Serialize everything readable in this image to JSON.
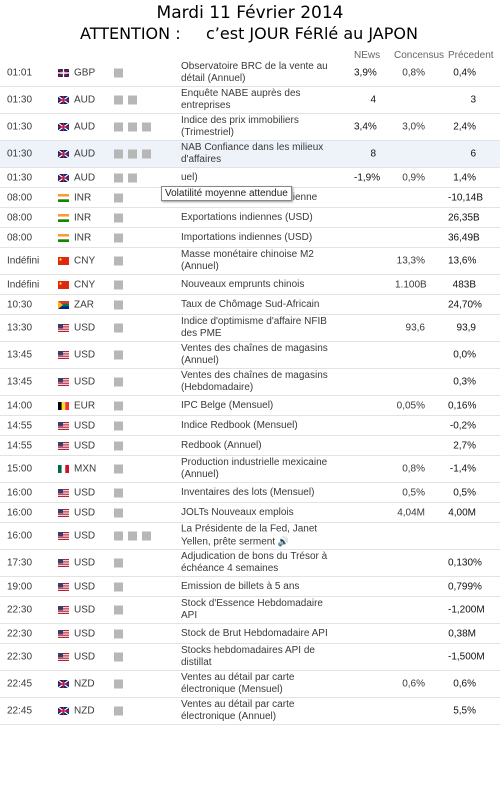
{
  "header": {
    "date": "Mardi 11 Février 2014",
    "attention": "ATTENTION :     c’est JOUR FéRlé au JAPON"
  },
  "columns": {
    "news": "NEws",
    "consensus": "Concensus",
    "previous": "Précedent"
  },
  "tooltip": "Volatilité moyenne attendue",
  "speaker_icon": "speaker-icon",
  "flag_colors": {
    "GBP": [
      "#012169",
      "#C8102E",
      "#ffffff"
    ],
    "AUD": [
      "#00247D",
      "#ffffff",
      "#CC142B"
    ],
    "INR": [
      "#FF9933",
      "#ffffff",
      "#138808"
    ],
    "CNY": [
      "#DE2910",
      "#DE2910",
      "#FFDE00"
    ],
    "ZAR": [
      "#007A4D",
      "#FFB612",
      "#DE3831"
    ],
    "USD": [
      "#B22234",
      "#ffffff",
      "#3C3B6E"
    ],
    "EUR": [
      "#000000",
      "#FDDA24",
      "#EF3340"
    ],
    "MXN": [
      "#006847",
      "#ffffff",
      "#CE1126"
    ],
    "NZD": [
      "#00247D",
      "#ffffff",
      "#CC142B"
    ]
  },
  "rows": [
    {
      "time": "01:01",
      "currency": "GBP",
      "importance": 1,
      "event": "Observatoire BRC de la vente au détail (Annuel)",
      "news": "3,9%",
      "consensus": "0,8%",
      "previous": "0,4%"
    },
    {
      "time": "01:30",
      "currency": "AUD",
      "importance": 2,
      "event": "Enquête NABE auprès des entreprises",
      "news": "4",
      "consensus": "",
      "previous": "3"
    },
    {
      "time": "01:30",
      "currency": "AUD",
      "importance": 3,
      "event": "Indice des prix immobiliers (Trimestriel)",
      "news": "3,4%",
      "consensus": "3,0%",
      "previous": "2,4%"
    },
    {
      "time": "01:30",
      "currency": "AUD",
      "importance": 3,
      "event": "NAB Confiance dans les milieux d'affaires",
      "news": "8",
      "consensus": "",
      "previous": "6"
    },
    {
      "time": "01:30",
      "currency": "AUD",
      "importance": 2,
      "event": "uel)",
      "news": "-1,9%",
      "consensus": "0,9%",
      "previous": "1,4%"
    },
    {
      "time": "08:00",
      "currency": "INR",
      "importance": 1,
      "event": "Balance commerciale indienne",
      "news": "",
      "consensus": "",
      "previous": "-10,14B"
    },
    {
      "time": "08:00",
      "currency": "INR",
      "importance": 1,
      "event": "Exportations indiennes (USD)",
      "news": "",
      "consensus": "",
      "previous": "26,35B"
    },
    {
      "time": "08:00",
      "currency": "INR",
      "importance": 1,
      "event": "Importations indiennes (USD)",
      "news": "",
      "consensus": "",
      "previous": "36,49B"
    },
    {
      "time": "Indéfini",
      "currency": "CNY",
      "importance": 1,
      "event": "Masse monétaire chinoise M2 (Annuel)",
      "news": "",
      "consensus": "13,3%",
      "previous": "13,6%"
    },
    {
      "time": "Indéfini",
      "currency": "CNY",
      "importance": 1,
      "event": "Nouveaux emprunts chinois",
      "news": "",
      "consensus": "1.100B",
      "previous": "483B"
    },
    {
      "time": "10:30",
      "currency": "ZAR",
      "importance": 1,
      "event": "Taux de Chômage Sud-Africain",
      "news": "",
      "consensus": "",
      "previous": "24,70%"
    },
    {
      "time": "13:30",
      "currency": "USD",
      "importance": 1,
      "event": "Indice d'optimisme d'affaire NFIB des PME",
      "news": "",
      "consensus": "93,6",
      "previous": "93,9"
    },
    {
      "time": "13:45",
      "currency": "USD",
      "importance": 1,
      "event": "Ventes des chaînes de magasins (Annuel)",
      "news": "",
      "consensus": "",
      "previous": "0,0%"
    },
    {
      "time": "13:45",
      "currency": "USD",
      "importance": 1,
      "event": "Ventes des chaînes de magasins (Hebdomadaire)",
      "news": "",
      "consensus": "",
      "previous": "0,3%"
    },
    {
      "time": "14:00",
      "currency": "EUR",
      "importance": 1,
      "event": "IPC Belge (Mensuel)",
      "news": "",
      "consensus": "0,05%",
      "previous": "0,16%"
    },
    {
      "time": "14:55",
      "currency": "USD",
      "importance": 1,
      "event": "Indice Redbook (Mensuel)",
      "news": "",
      "consensus": "",
      "previous": "-0,2%"
    },
    {
      "time": "14:55",
      "currency": "USD",
      "importance": 1,
      "event": "Redbook (Annuel)",
      "news": "",
      "consensus": "",
      "previous": "2,7%"
    },
    {
      "time": "15:00",
      "currency": "MXN",
      "importance": 1,
      "event": "Production industrielle mexicaine (Annuel)",
      "news": "",
      "consensus": "0,8%",
      "previous": "-1,4%"
    },
    {
      "time": "16:00",
      "currency": "USD",
      "importance": 1,
      "event": "Inventaires des lots (Mensuel)",
      "news": "",
      "consensus": "0,5%",
      "previous": "0,5%"
    },
    {
      "time": "16:00",
      "currency": "USD",
      "importance": 1,
      "event": "JOLTs Nouveaux emplois",
      "news": "",
      "consensus": "4,04M",
      "previous": "4,00M"
    },
    {
      "time": "16:00",
      "currency": "USD",
      "importance": 3,
      "event": "La Présidente de la Fed, Janet Yellen, prête serment",
      "news": "",
      "consensus": "",
      "previous": "",
      "speaker": true
    },
    {
      "time": "17:30",
      "currency": "USD",
      "importance": 1,
      "event": "Adjudication de bons du Trésor à échéance 4 semaines",
      "news": "",
      "consensus": "",
      "previous": "0,130%"
    },
    {
      "time": "19:00",
      "currency": "USD",
      "importance": 1,
      "event": "Emission de billets à 5 ans",
      "news": "",
      "consensus": "",
      "previous": "0,799%"
    },
    {
      "time": "22:30",
      "currency": "USD",
      "importance": 1,
      "event": "Stock d'Essence Hebdomadaire API",
      "news": "",
      "consensus": "",
      "previous": "-1,200M"
    },
    {
      "time": "22:30",
      "currency": "USD",
      "importance": 1,
      "event": "Stock de Brut Hebdomadaire API",
      "news": "",
      "consensus": "",
      "previous": "0,38M"
    },
    {
      "time": "22:30",
      "currency": "USD",
      "importance": 1,
      "event": "Stocks hebdomadaires API de distillat",
      "news": "",
      "consensus": "",
      "previous": "-1,500M"
    },
    {
      "time": "22:45",
      "currency": "NZD",
      "importance": 1,
      "event": "Ventes au détail par carte électronique (Mensuel)",
      "news": "",
      "consensus": "0,6%",
      "previous": "0,6%"
    },
    {
      "time": "22:45",
      "currency": "NZD",
      "importance": 1,
      "event": "Ventes au détail par carte électronique (Annuel)",
      "news": "",
      "consensus": "",
      "previous": "5,5%"
    }
  ]
}
